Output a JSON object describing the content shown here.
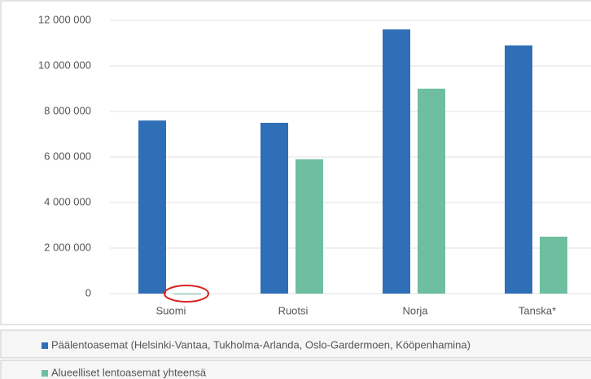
{
  "chart_data": {
    "type": "bar",
    "categories": [
      "Suomi",
      "Ruotsi",
      "Norja",
      "Tanska*"
    ],
    "series": [
      {
        "name": "Päälentoasemat (Helsinki-Vantaa, Tukholma-Arlanda, Oslo-Gardermoen, Kööpenhamina)",
        "color": "#2f6fb8",
        "values": [
          7600000,
          7500000,
          11600000,
          10900000
        ]
      },
      {
        "name": "Alueelliset lentoasemat yhteensä",
        "color": "#6dbf9f",
        "values": [
          0,
          5900000,
          9000000,
          2500000
        ]
      }
    ],
    "ylim": [
      0,
      12000000
    ],
    "yticks": [
      0,
      {
        "value": 2000000,
        "label": "2 000 000"
      },
      {
        "value": 4000000,
        "label": "4 000 000"
      },
      {
        "value": 6000000,
        "label": "6 000 000"
      },
      {
        "value": 8000000,
        "label": "8 000 000"
      },
      {
        "value": 10000000,
        "label": "10 000 000"
      },
      {
        "value": 12000000,
        "label": "12 000 000"
      }
    ],
    "grid": true
  }
}
